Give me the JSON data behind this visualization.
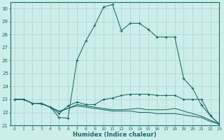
{
  "xlabel": "Humidex (Indice chaleur)",
  "xlim": [
    -0.5,
    23
  ],
  "ylim": [
    21,
    30.5
  ],
  "yticks": [
    21,
    22,
    23,
    24,
    25,
    26,
    27,
    28,
    29,
    30
  ],
  "xticks": [
    0,
    1,
    2,
    3,
    4,
    5,
    6,
    7,
    8,
    9,
    10,
    11,
    12,
    13,
    14,
    15,
    16,
    17,
    18,
    19,
    20,
    21,
    22,
    23
  ],
  "xtick_labels": [
    "0",
    "1",
    "2",
    "3",
    "4",
    "5",
    "6",
    "7",
    "8",
    "9",
    "10",
    "11",
    "12",
    "13",
    "14",
    "15",
    "16",
    "17",
    "18",
    "19",
    "20",
    "21",
    "22",
    "23"
  ],
  "bg_color": "#cceee8",
  "line_color": "#1a6b6b",
  "grid_color": "#aad4ce",
  "lines": [
    {
      "x": [
        0,
        1,
        2,
        3,
        4,
        5,
        6,
        7,
        8,
        9,
        10,
        11,
        12,
        13,
        14,
        15,
        16,
        17,
        18,
        19,
        20,
        21,
        22,
        23
      ],
      "y": [
        23,
        23,
        22.7,
        22.7,
        22.4,
        21.6,
        21.55,
        26.0,
        27.5,
        28.7,
        30.1,
        30.3,
        28.3,
        28.85,
        28.85,
        28.4,
        27.8,
        27.8,
        27.8,
        24.6,
        23.85,
        22.55,
        21.75,
        21.1
      ],
      "marker": "+",
      "linestyle": "-"
    },
    {
      "x": [
        0,
        1,
        2,
        3,
        4,
        5,
        6,
        7,
        8,
        9,
        10,
        11,
        12,
        13,
        14,
        15,
        16,
        17,
        18,
        19,
        20,
        21,
        22,
        23
      ],
      "y": [
        23,
        23,
        22.7,
        22.7,
        22.4,
        21.9,
        22.5,
        22.8,
        22.6,
        22.6,
        23.0,
        23.1,
        23.3,
        23.4,
        23.4,
        23.4,
        23.3,
        23.3,
        23.3,
        23.0,
        23.0,
        23.0,
        21.75,
        21.1
      ],
      "marker": ".",
      "linestyle": "-"
    },
    {
      "x": [
        0,
        1,
        2,
        3,
        4,
        5,
        6,
        7,
        8,
        9,
        10,
        11,
        12,
        13,
        14,
        15,
        16,
        17,
        18,
        19,
        20,
        21,
        22,
        23
      ],
      "y": [
        23,
        23,
        22.7,
        22.7,
        22.4,
        22.1,
        22.3,
        22.5,
        22.4,
        22.3,
        22.2,
        22.1,
        22.1,
        22.1,
        22.0,
        22.0,
        21.9,
        21.9,
        21.9,
        21.8,
        21.7,
        21.6,
        21.3,
        21.1
      ],
      "marker": null,
      "linestyle": "-"
    },
    {
      "x": [
        0,
        1,
        2,
        3,
        4,
        5,
        6,
        7,
        8,
        9,
        10,
        11,
        12,
        13,
        14,
        15,
        16,
        17,
        18,
        19,
        20,
        21,
        22,
        23
      ],
      "y": [
        23,
        23,
        22.7,
        22.65,
        22.4,
        22.05,
        22.3,
        22.6,
        22.5,
        22.4,
        22.3,
        22.2,
        22.2,
        22.25,
        22.3,
        22.2,
        22.2,
        22.2,
        22.3,
        22.1,
        21.9,
        21.7,
        21.4,
        21.1
      ],
      "marker": null,
      "linestyle": "-"
    }
  ]
}
